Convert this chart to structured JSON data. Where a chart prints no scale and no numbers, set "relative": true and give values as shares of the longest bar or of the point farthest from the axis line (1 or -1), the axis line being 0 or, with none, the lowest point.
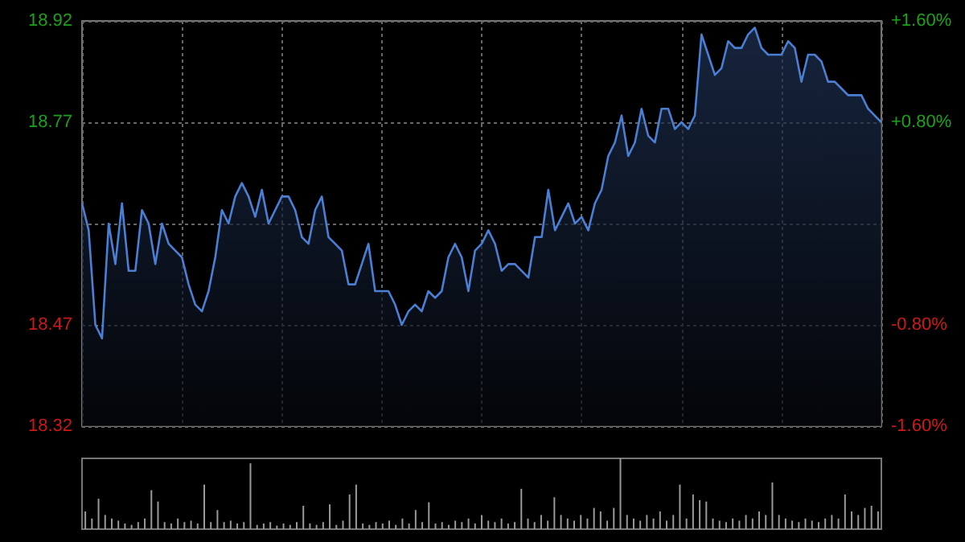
{
  "chart_data": [
    {
      "type": "area",
      "categories": [
        null,
        null,
        null,
        null,
        null,
        null,
        null,
        null,
        null,
        null,
        null,
        null,
        null,
        null,
        null,
        null,
        null,
        null,
        null,
        null,
        null,
        null,
        null,
        null,
        null,
        null,
        null,
        null,
        null,
        null,
        null,
        null,
        null,
        null,
        null,
        null,
        null,
        null,
        null,
        null,
        null,
        null,
        null,
        null,
        null,
        null,
        null,
        null,
        null,
        null,
        null,
        null,
        null,
        null,
        null,
        null,
        null,
        null,
        null,
        null,
        null,
        null,
        null,
        null,
        null,
        null,
        null,
        null,
        null,
        null,
        null,
        null,
        null,
        null,
        null,
        null,
        null,
        null,
        null,
        null,
        null,
        null,
        null,
        null,
        null,
        null,
        null,
        null,
        null,
        null,
        null,
        null,
        null,
        null,
        null,
        null,
        null,
        null,
        null,
        null,
        null,
        null,
        null,
        null,
        null,
        null,
        null,
        null,
        null,
        null,
        null,
        null,
        null,
        null,
        null,
        null,
        null,
        null,
        null,
        null,
        null
      ],
      "series": [
        {
          "color": "#4a7fd4",
          "values": [
            18.65,
            18.61,
            18.47,
            18.45,
            18.62,
            18.56,
            18.65,
            18.55,
            18.55,
            18.64,
            18.62,
            18.56,
            18.62,
            18.59,
            18.58,
            18.57,
            18.53,
            18.5,
            18.49,
            18.52,
            18.57,
            18.64,
            18.62,
            18.66,
            18.68,
            18.66,
            18.63,
            18.67,
            18.62,
            18.64,
            18.66,
            18.66,
            18.64,
            18.6,
            18.59,
            18.64,
            18.66,
            18.6,
            18.59,
            18.58,
            18.53,
            18.53,
            18.56,
            18.59,
            18.52,
            18.52,
            18.52,
            18.5,
            18.47,
            18.49,
            18.5,
            18.49,
            18.52,
            18.51,
            18.52,
            18.57,
            18.59,
            18.57,
            18.52,
            18.58,
            18.59,
            18.61,
            18.59,
            18.55,
            18.56,
            18.56,
            18.55,
            18.54,
            18.6,
            18.6,
            18.67,
            18.61,
            18.63,
            18.65,
            18.62,
            18.63,
            18.61,
            18.65,
            18.67,
            18.72,
            18.74,
            18.78,
            18.72,
            18.74,
            18.79,
            18.75,
            18.74,
            18.79,
            18.79,
            18.76,
            18.77,
            18.76,
            18.78,
            18.9,
            18.87,
            18.84,
            18.85,
            18.89,
            18.88,
            18.88,
            18.9,
            18.91,
            18.88,
            18.87,
            18.87,
            18.87,
            18.89,
            18.88,
            18.83,
            18.87,
            18.87,
            18.86,
            18.83,
            18.83,
            18.82,
            18.81,
            18.81,
            18.81,
            18.79,
            18.78,
            18.77
          ]
        }
      ],
      "ylim": [
        18.32,
        18.92
      ],
      "yticks": [
        18.32,
        18.47,
        {
          "value": 18.62,
          "label": null
        },
        18.77,
        18.92
      ],
      "y2lim": [
        -1.6,
        1.6
      ],
      "y2ticks": [
        {
          "value": -1.6,
          "label": "-1.60%"
        },
        {
          "value": -0.8,
          "label": "-0.80%"
        },
        {
          "value": 0.8,
          "label": "+0.80%"
        },
        {
          "value": 1.6,
          "label": "+1.60%"
        }
      ],
      "grid": true
    },
    {
      "type": "bar",
      "relative": true,
      "categories": [
        null,
        null,
        null,
        null,
        null,
        null,
        null,
        null,
        null,
        null,
        null,
        null,
        null,
        null,
        null,
        null,
        null,
        null,
        null,
        null,
        null,
        null,
        null,
        null,
        null,
        null,
        null,
        null,
        null,
        null,
        null,
        null,
        null,
        null,
        null,
        null,
        null,
        null,
        null,
        null,
        null,
        null,
        null,
        null,
        null,
        null,
        null,
        null,
        null,
        null,
        null,
        null,
        null,
        null,
        null,
        null,
        null,
        null,
        null,
        null,
        null,
        null,
        null,
        null,
        null,
        null,
        null,
        null,
        null,
        null,
        null,
        null,
        null,
        null,
        null,
        null,
        null,
        null,
        null,
        null,
        null,
        null,
        null,
        null,
        null,
        null,
        null,
        null,
        null,
        null,
        null,
        null,
        null,
        null,
        null,
        null,
        null,
        null,
        null,
        null,
        null,
        null,
        null,
        null,
        null,
        null,
        null,
        null,
        null,
        null,
        null,
        null,
        null,
        null,
        null,
        null,
        null,
        null,
        null,
        null,
        null
      ],
      "series": [
        {
          "color": "#9a9a9a",
          "values": [
            0.25,
            0.15,
            0.43,
            0.2,
            0.15,
            0.12,
            0.08,
            0.06,
            0.1,
            0.15,
            0.55,
            0.39,
            0.1,
            0.08,
            0.15,
            0.1,
            0.12,
            0.08,
            0.63,
            0.1,
            0.27,
            0.1,
            0.12,
            0.08,
            0.1,
            0.93,
            0.06,
            0.08,
            0.1,
            0.05,
            0.08,
            0.06,
            0.1,
            0.33,
            0.08,
            0.06,
            0.1,
            0.35,
            0.06,
            0.12,
            0.49,
            0.63,
            0.08,
            0.06,
            0.1,
            0.08,
            0.12,
            0.06,
            0.15,
            0.08,
            0.27,
            0.1,
            0.38,
            0.08,
            0.1,
            0.06,
            0.12,
            0.1,
            0.15,
            0.08,
            0.2,
            0.12,
            0.1,
            0.15,
            0.08,
            0.1,
            0.57,
            0.15,
            0.1,
            0.2,
            0.12,
            0.45,
            0.2,
            0.15,
            0.12,
            0.2,
            0.15,
            0.3,
            0.25,
            0.12,
            0.3,
            1.0,
            0.2,
            0.15,
            0.12,
            0.2,
            0.15,
            0.25,
            0.12,
            0.2,
            0.63,
            0.15,
            0.49,
            0.41,
            0.39,
            0.15,
            0.12,
            0.1,
            0.15,
            0.12,
            0.2,
            0.15,
            0.25,
            0.2,
            0.66,
            0.2,
            0.15,
            0.12,
            0.1,
            0.15,
            0.12,
            0.1,
            0.15,
            0.2,
            0.15,
            0.49,
            0.25,
            0.2,
            0.3,
            0.33,
            0.25
          ]
        }
      ]
    }
  ]
}
